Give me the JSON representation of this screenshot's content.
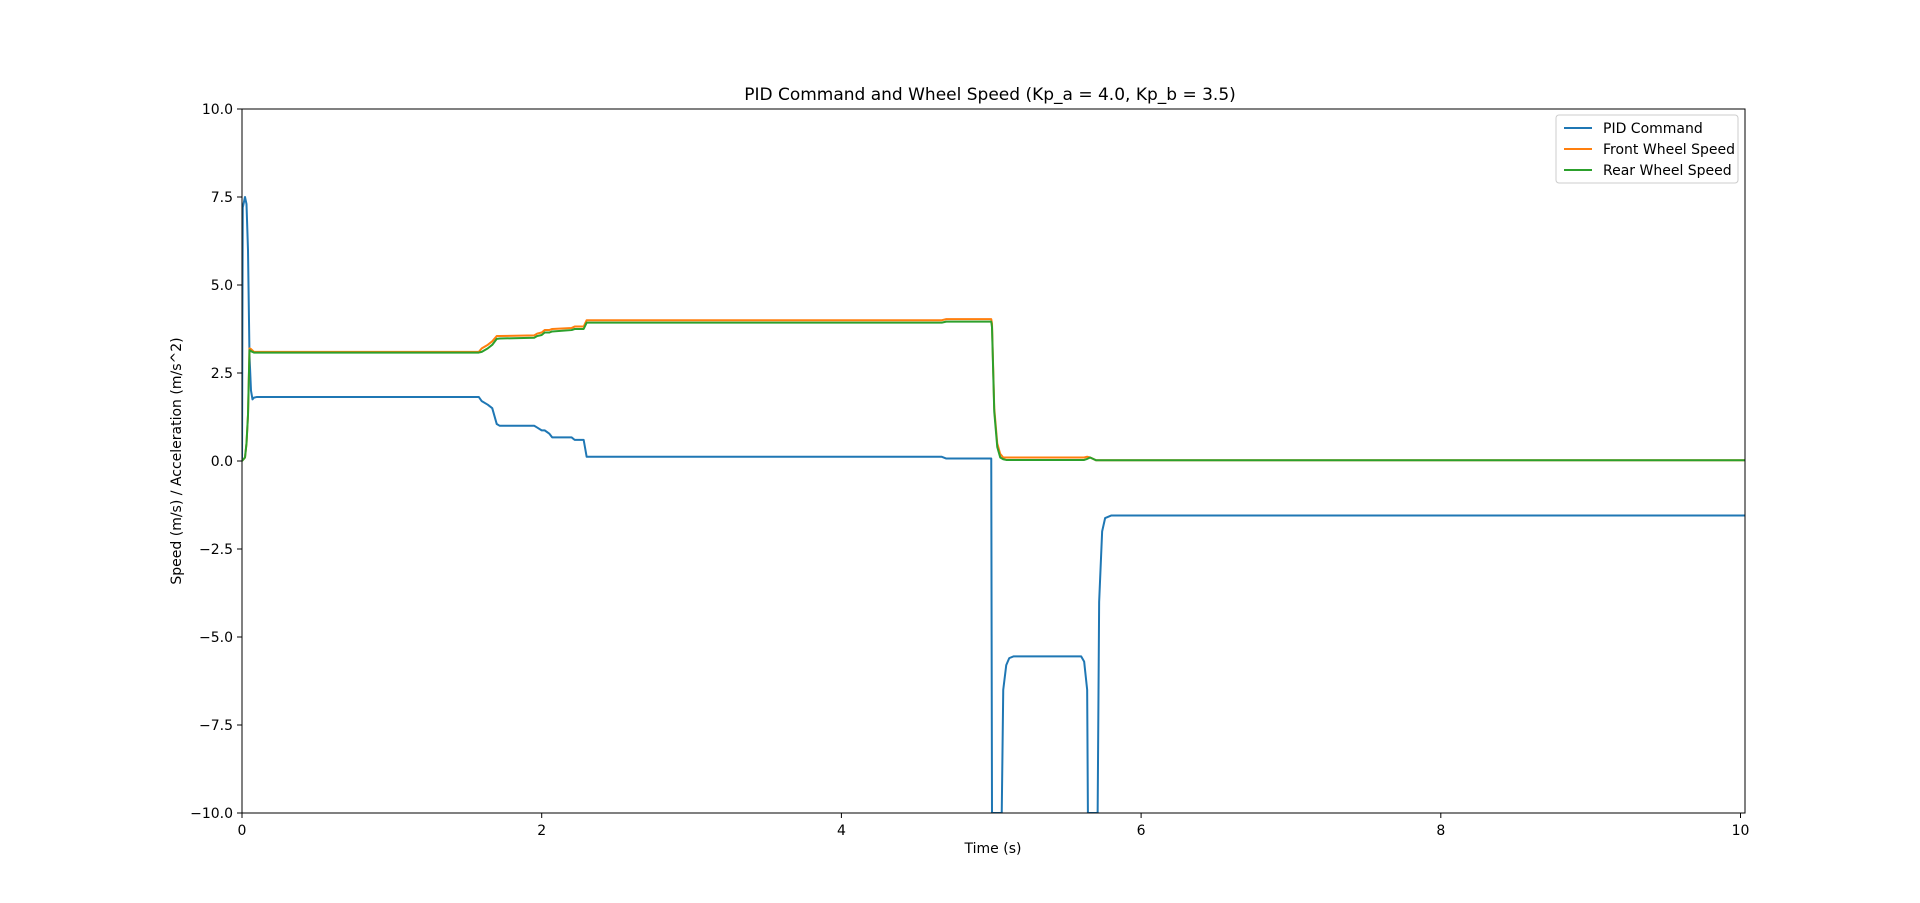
{
  "chart_data": {
    "type": "line",
    "title": "PID Command and Wheel Speed (Kp_a = 4.0, Kp_b = 3.5)",
    "xlabel": "Time (s)",
    "ylabel": "Speed (m/s) / Acceleration (m/s^2)",
    "xlim": [
      0,
      10.03
    ],
    "ylim": [
      -10,
      10
    ],
    "xticks": [
      0,
      2,
      4,
      6,
      8,
      10
    ],
    "xtick_labels": [
      "0",
      "2",
      "4",
      "6",
      "8",
      "10"
    ],
    "yticks": [
      -10,
      -7.5,
      -5,
      -2.5,
      0,
      2.5,
      5,
      7.5,
      10
    ],
    "ytick_labels": [
      "−10.0",
      "−7.5",
      "−5.0",
      "−2.5",
      "0.0",
      "2.5",
      "5.0",
      "7.5",
      "10.0"
    ],
    "grid": false,
    "legend_position": "top-right",
    "series": [
      {
        "name": "PID Command",
        "color": "#1f77b4",
        "x": [
          0,
          0.005,
          0.02,
          0.03,
          0.04,
          0.05,
          0.06,
          0.07,
          0.08,
          0.1,
          0.2,
          1.58,
          1.6,
          1.64,
          1.67,
          1.7,
          1.72,
          1.95,
          1.97,
          2.0,
          2.02,
          2.05,
          2.07,
          2.2,
          2.22,
          2.28,
          2.3,
          4.67,
          4.7,
          5.0,
          5.005,
          5.07,
          5.08,
          5.1,
          5.12,
          5.15,
          5.2,
          5.6,
          5.62,
          5.64,
          5.645,
          5.71,
          5.72,
          5.74,
          5.76,
          5.8,
          5.9,
          10.03
        ],
        "y": [
          0,
          7.2,
          7.5,
          7.3,
          6.0,
          3.0,
          2.0,
          1.75,
          1.8,
          1.82,
          1.82,
          1.82,
          1.7,
          1.6,
          1.5,
          1.05,
          1.0,
          1.0,
          0.95,
          0.87,
          0.87,
          0.78,
          0.67,
          0.67,
          0.6,
          0.6,
          0.12,
          0.12,
          0.07,
          0.07,
          -10,
          -10,
          -6.5,
          -5.8,
          -5.6,
          -5.55,
          -5.55,
          -5.55,
          -5.7,
          -6.5,
          -10,
          -10,
          -4.0,
          -2.0,
          -1.62,
          -1.55,
          -1.55,
          -1.55
        ]
      },
      {
        "name": "Front Wheel Speed",
        "color": "#ff7f0e",
        "x": [
          0,
          0.02,
          0.03,
          0.04,
          0.05,
          0.06,
          0.08,
          0.1,
          0.2,
          1.58,
          1.6,
          1.64,
          1.67,
          1.7,
          1.72,
          1.95,
          1.97,
          2.0,
          2.02,
          2.05,
          2.07,
          2.2,
          2.22,
          2.28,
          2.3,
          4.67,
          4.7,
          5.0,
          5.005,
          5.02,
          5.04,
          5.06,
          5.08,
          5.1,
          5.62,
          5.64,
          5.66,
          5.7,
          10.03
        ],
        "y": [
          0,
          0.1,
          0.5,
          1.3,
          3.2,
          3.18,
          3.1,
          3.1,
          3.1,
          3.1,
          3.2,
          3.3,
          3.4,
          3.55,
          3.55,
          3.57,
          3.62,
          3.65,
          3.72,
          3.72,
          3.75,
          3.78,
          3.82,
          3.82,
          4.0,
          4.0,
          4.03,
          4.03,
          3.9,
          1.5,
          0.5,
          0.2,
          0.1,
          0.1,
          0.1,
          0.12,
          0.1,
          0.02,
          0.02
        ]
      },
      {
        "name": "Rear Wheel Speed",
        "color": "#2ca02c",
        "x": [
          0,
          0.02,
          0.03,
          0.04,
          0.05,
          0.06,
          0.08,
          0.1,
          0.2,
          1.58,
          1.6,
          1.64,
          1.67,
          1.7,
          1.72,
          1.95,
          1.97,
          2.0,
          2.02,
          2.05,
          2.07,
          2.2,
          2.22,
          2.28,
          2.3,
          4.67,
          4.7,
          5.0,
          5.005,
          5.02,
          5.04,
          5.06,
          5.08,
          5.1,
          5.62,
          5.64,
          5.66,
          5.7,
          10.03
        ],
        "y": [
          0,
          0.1,
          0.5,
          1.3,
          3.15,
          3.12,
          3.08,
          3.08,
          3.08,
          3.08,
          3.1,
          3.2,
          3.3,
          3.47,
          3.48,
          3.5,
          3.55,
          3.58,
          3.65,
          3.65,
          3.68,
          3.72,
          3.75,
          3.75,
          3.93,
          3.93,
          3.96,
          3.96,
          3.8,
          1.4,
          0.4,
          0.1,
          0.05,
          0.03,
          0.03,
          0.06,
          0.1,
          0.02,
          0.02
        ]
      }
    ]
  }
}
